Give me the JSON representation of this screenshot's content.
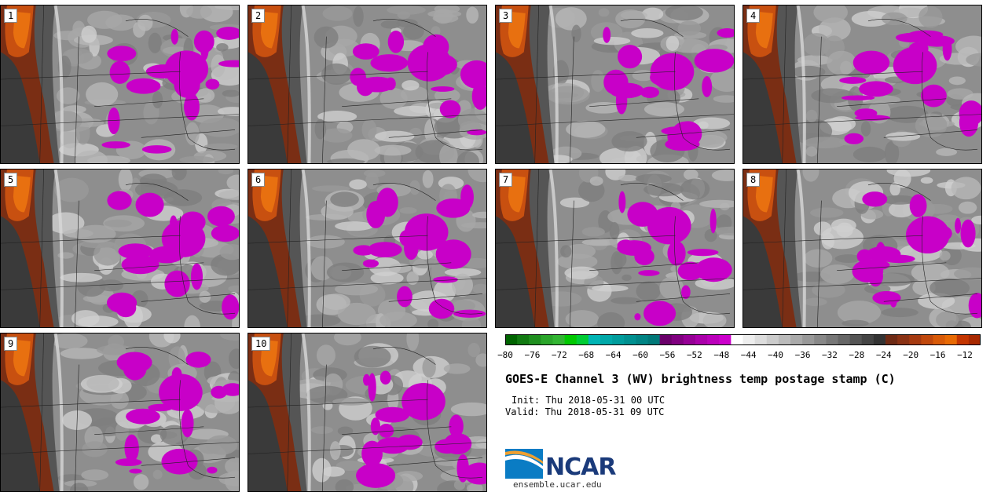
{
  "members": [
    "1",
    "2",
    "3",
    "4",
    "5",
    "6",
    "7",
    "8",
    "9",
    "10"
  ],
  "colorbar": {
    "colors": [
      "#006400",
      "#117a11",
      "#1f8f1f",
      "#2aa52a",
      "#32b532",
      "#00c800",
      "#00cc33",
      "#00b4b4",
      "#00a8a8",
      "#009c9c",
      "#009090",
      "#008484",
      "#007878",
      "#6a006a",
      "#800080",
      "#960096",
      "#aa00aa",
      "#bb00bb",
      "#cc00cc",
      "#ffffff",
      "#eeeeee",
      "#dddddd",
      "#cccccc",
      "#bbbbbb",
      "#aaaaaa",
      "#999999",
      "#888888",
      "#777777",
      "#666666",
      "#555555",
      "#444444",
      "#333333",
      "#6e2a14",
      "#8a3214",
      "#a53a10",
      "#c0480c",
      "#d85a08",
      "#e86a04",
      "#c43500",
      "#a82800"
    ],
    "ticks": [
      "−80",
      "−76",
      "−72",
      "−68",
      "−64",
      "−60",
      "−56",
      "−52",
      "−48",
      "−44",
      "−40",
      "−36",
      "−32",
      "−28",
      "−24",
      "−20",
      "−16",
      "−12"
    ]
  },
  "title": "GOES-E Channel 3 (WV) brightness temp postage stamp (C)",
  "init": "Init: Thu 2018-05-31 00 UTC",
  "valid": "Valid: Thu 2018-05-31 09 UTC",
  "logo": {
    "name": "NCAR",
    "url": "ensemble.ucar.edu"
  }
}
